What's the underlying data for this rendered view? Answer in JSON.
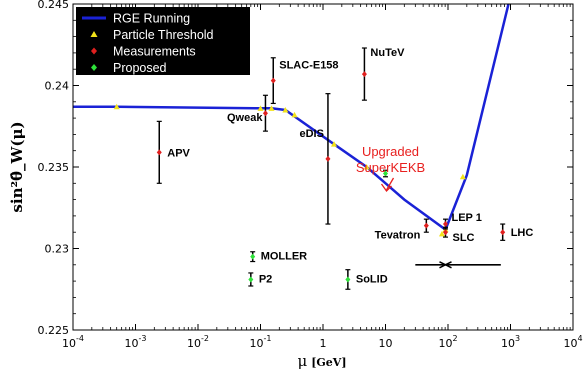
{
  "chart_data": {
    "type": "scatter",
    "x_scale": "log",
    "xlim": [
      0.0001,
      10000
    ],
    "ylim": [
      0.225,
      0.245
    ],
    "xlabel": "μ",
    "xlabel_unit": "[GeV]",
    "ylabel": "sin²θ̂_W(μ)",
    "x_ticks": [
      {
        "value": 0.0001,
        "base": "10",
        "exp": "-4"
      },
      {
        "value": 0.001,
        "base": "10",
        "exp": "-3"
      },
      {
        "value": 0.01,
        "base": "10",
        "exp": "-2"
      },
      {
        "value": 0.1,
        "base": "10",
        "exp": "-1"
      },
      {
        "value": 1,
        "base": "1",
        "exp": ""
      },
      {
        "value": 10,
        "base": "10",
        "exp": ""
      },
      {
        "value": 100,
        "base": "10",
        "exp": "2"
      },
      {
        "value": 1000,
        "base": "10",
        "exp": "3"
      },
      {
        "value": 10000,
        "base": "10",
        "exp": "4"
      }
    ],
    "y_ticks": [
      {
        "value": 0.225,
        "label": "0.225"
      },
      {
        "value": 0.23,
        "label": "0.23"
      },
      {
        "value": 0.235,
        "label": "0.235"
      },
      {
        "value": 0.24,
        "label": "0.24"
      },
      {
        "value": 0.245,
        "label": "0.245"
      }
    ],
    "legend": {
      "placement": "top-left",
      "entries": [
        {
          "label": "RGE Running",
          "marker": "line",
          "color": "#1a22d6"
        },
        {
          "label": "Particle Threshold",
          "marker": "triangle",
          "color": "#f2e21a"
        },
        {
          "label": "Measurements",
          "marker": "diamond",
          "color": "#e0201f"
        },
        {
          "label": "Proposed",
          "marker": "diamond",
          "color": "#2ee23a"
        }
      ]
    },
    "curve": [
      [
        0.0001,
        0.2387
      ],
      [
        0.0005,
        0.2387
      ],
      [
        0.1,
        0.2386
      ],
      [
        0.15,
        0.2386
      ],
      [
        0.25,
        0.2385
      ],
      [
        1.5,
        0.2364
      ],
      [
        5.0,
        0.235
      ],
      [
        20,
        0.233
      ],
      [
        91.2,
        0.23116
      ],
      [
        200,
        0.2345
      ],
      [
        1000,
        0.2455
      ]
    ],
    "thresholds": [
      [
        0.0005,
        0.2387
      ],
      [
        0.1,
        0.2386
      ],
      [
        0.15,
        0.2386
      ],
      [
        0.25,
        0.2385
      ],
      [
        0.35,
        0.2382
      ],
      [
        1.5,
        0.2364
      ],
      [
        5.0,
        0.235
      ],
      [
        80,
        0.2309
      ],
      [
        91.2,
        0.23116
      ],
      [
        173,
        0.2344
      ]
    ],
    "measurements": [
      {
        "name": "APV",
        "x": 0.0024,
        "y": 0.2359,
        "err": 0.0019
      },
      {
        "name": "Qweak",
        "x": 0.12,
        "y": 0.2383,
        "err": 0.0011
      },
      {
        "name": "SLAC-E158",
        "x": 0.16,
        "y": 0.2403,
        "err": 0.0014
      },
      {
        "name": "NuTeV",
        "x": 4.6,
        "y": 0.2407,
        "err": 0.0016
      },
      {
        "name": "eDIS",
        "x": 1.2,
        "y": 0.2355,
        "err": 0.004
      },
      {
        "name": "Tevatron",
        "x": 45,
        "y": 0.2314,
        "err": 0.0004
      },
      {
        "name": "LEP 1",
        "x": 91.2,
        "y": 0.2315,
        "err": 0.0003
      },
      {
        "name": "SLC",
        "x": 91.2,
        "y": 0.231,
        "err": 0.0003
      },
      {
        "name": "LHC",
        "x": 750,
        "y": 0.231,
        "err": 0.0005
      }
    ],
    "proposed": [
      {
        "name": "MOLLER",
        "x": 0.075,
        "y": 0.2295,
        "err": 0.0003
      },
      {
        "name": "P2",
        "x": 0.07,
        "y": 0.2281,
        "err": 0.0004
      },
      {
        "name": "SoLID",
        "x": 2.5,
        "y": 0.2281,
        "err": 0.0006
      },
      {
        "name": "",
        "x": 10,
        "y": 0.2346,
        "err": 0.0002
      }
    ],
    "horizontal_marker": {
      "x_min": 30,
      "x_max": 700,
      "y": 0.229,
      "center": 91.2
    },
    "annotation": {
      "lines": [
        "Upgraded",
        "SuperKEKB"
      ],
      "color": "#e8201f"
    }
  }
}
